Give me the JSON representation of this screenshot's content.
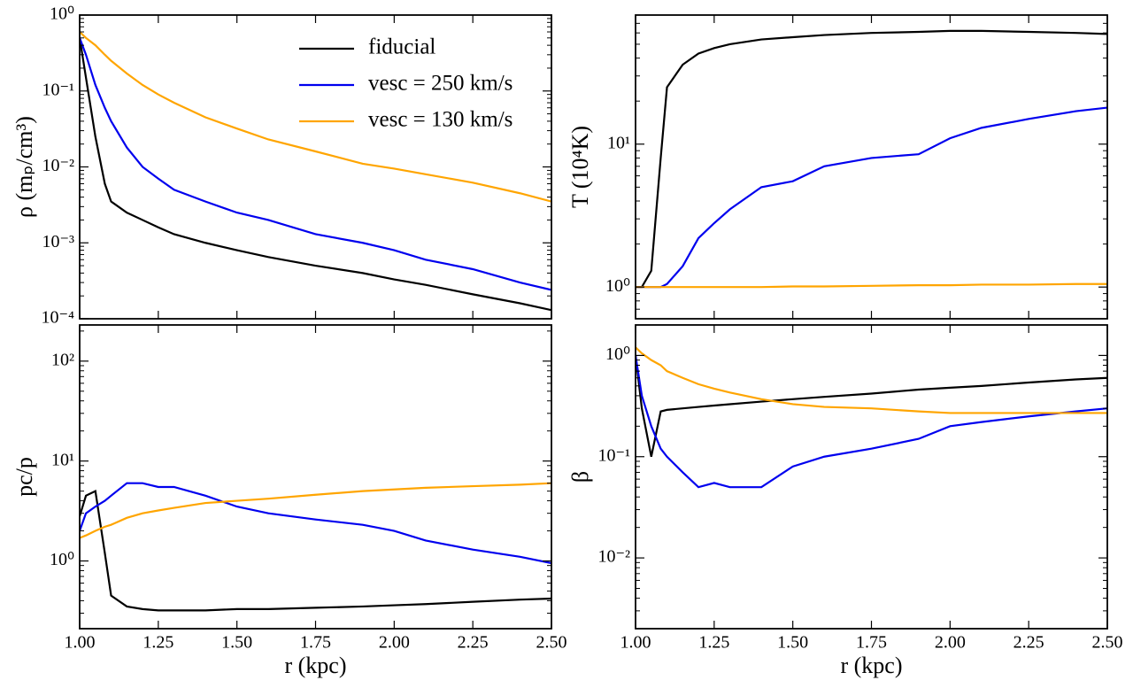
{
  "chart_data": [
    {
      "type": "line",
      "log_y": true,
      "legend": "upper right",
      "ylabel": "ρ (mₚ/cm³)",
      "x": [
        1.0,
        1.02,
        1.05,
        1.08,
        1.1,
        1.15,
        1.2,
        1.25,
        1.3,
        1.4,
        1.5,
        1.6,
        1.75,
        1.9,
        2.0,
        2.1,
        2.25,
        2.4,
        2.5
      ],
      "xlim": [
        1,
        2.5
      ],
      "xticks": [
        1,
        1.25,
        1.5,
        1.75,
        2,
        2.25,
        2.5
      ],
      "ylim": [
        0.0001,
        1
      ],
      "yticks": [
        {
          "value": 0.0001,
          "label": "10⁻⁴"
        },
        {
          "value": 0.001,
          "label": "10⁻³"
        },
        {
          "value": 0.01,
          "label": "10⁻²"
        },
        {
          "value": 0.1,
          "label": "10⁻¹"
        },
        {
          "value": 1,
          "label": "10⁰"
        }
      ],
      "series": [
        {
          "name": "fiducial",
          "color": "#000000",
          "values": [
            0.5,
            0.15,
            0.025,
            0.006,
            0.0035,
            0.0025,
            0.002,
            0.0016,
            0.0013,
            0.001,
            0.0008,
            0.00065,
            0.0005,
            0.0004,
            0.00033,
            0.00028,
            0.00021,
            0.00016,
            0.00013
          ]
        },
        {
          "name": "vesc = 250 km/s",
          "color": "#0000ee",
          "values": [
            0.5,
            0.3,
            0.12,
            0.06,
            0.04,
            0.018,
            0.01,
            0.007,
            0.005,
            0.0035,
            0.0025,
            0.002,
            0.0013,
            0.001,
            0.0008,
            0.0006,
            0.00045,
            0.0003,
            0.00024
          ]
        },
        {
          "name": "vesc = 130 km/s",
          "color": "#ffa500",
          "values": [
            0.6,
            0.5,
            0.4,
            0.3,
            0.25,
            0.17,
            0.12,
            0.09,
            0.07,
            0.045,
            0.032,
            0.023,
            0.016,
            0.011,
            0.0095,
            0.008,
            0.0062,
            0.0045,
            0.0035
          ]
        }
      ]
    },
    {
      "type": "line",
      "log_y": true,
      "ylabel": "T (10⁴K)",
      "x": [
        1.0,
        1.02,
        1.05,
        1.08,
        1.1,
        1.15,
        1.2,
        1.25,
        1.3,
        1.4,
        1.5,
        1.6,
        1.75,
        1.9,
        2.0,
        2.1,
        2.25,
        2.4,
        2.5
      ],
      "xlim": [
        1,
        2.5
      ],
      "xticks": [
        1,
        1.25,
        1.5,
        1.75,
        2,
        2.25,
        2.5
      ],
      "ylim": [
        0.6,
        80
      ],
      "yticks": [
        {
          "value": 1,
          "label": "10⁰"
        },
        {
          "value": 10,
          "label": "10¹"
        }
      ],
      "series": [
        {
          "color": "#000000",
          "values": [
            1.0,
            1.0,
            1.3,
            8,
            25,
            36,
            43,
            47,
            50,
            54,
            56,
            58,
            60,
            61,
            62,
            62,
            61,
            60,
            59
          ]
        },
        {
          "color": "#0000ee",
          "values": [
            1,
            1,
            1,
            1,
            1.05,
            1.4,
            2.2,
            2.8,
            3.5,
            5,
            5.5,
            7,
            8,
            8.5,
            11,
            13,
            15,
            17,
            18
          ]
        },
        {
          "color": "#ffa500",
          "values": [
            1,
            1,
            1,
            1,
            1,
            1,
            1,
            1,
            1,
            1,
            1.01,
            1.01,
            1.02,
            1.03,
            1.03,
            1.04,
            1.04,
            1.05,
            1.05
          ]
        }
      ]
    },
    {
      "type": "line",
      "log_y": true,
      "xlabel": "r (kpc)",
      "ylabel": "pc/p",
      "x": [
        1.0,
        1.02,
        1.05,
        1.08,
        1.1,
        1.15,
        1.2,
        1.25,
        1.3,
        1.4,
        1.5,
        1.6,
        1.75,
        1.9,
        2.0,
        2.1,
        2.25,
        2.4,
        2.5
      ],
      "xlim": [
        1,
        2.5
      ],
      "xticks": [
        {
          "value": 1,
          "label": "1.00"
        },
        {
          "value": 1.25,
          "label": "1.25"
        },
        {
          "value": 1.5,
          "label": "1.50"
        },
        {
          "value": 1.75,
          "label": "1.75"
        },
        {
          "value": 2,
          "label": "2.00"
        },
        {
          "value": 2.25,
          "label": "2.25"
        },
        {
          "value": 2.5,
          "label": "2.50"
        }
      ],
      "ylim": [
        0.21,
        230
      ],
      "yticks": [
        {
          "value": 1,
          "label": "10⁰"
        },
        {
          "value": 10,
          "label": "10¹"
        },
        {
          "value": 100,
          "label": "10²"
        }
      ],
      "series": [
        {
          "color": "#000000",
          "values": [
            2.8,
            4.5,
            5,
            1.2,
            0.45,
            0.35,
            0.33,
            0.32,
            0.32,
            0.32,
            0.33,
            0.33,
            0.34,
            0.35,
            0.36,
            0.37,
            0.39,
            0.41,
            0.42
          ]
        },
        {
          "color": "#0000ee",
          "values": [
            2,
            3,
            3.5,
            4,
            4.5,
            6,
            6,
            5.5,
            5.5,
            4.5,
            3.5,
            3,
            2.6,
            2.3,
            2.0,
            1.6,
            1.3,
            1.1,
            0.95
          ]
        },
        {
          "color": "#ffa500",
          "values": [
            1.7,
            1.8,
            2,
            2.2,
            2.3,
            2.7,
            3,
            3.2,
            3.4,
            3.8,
            4.0,
            4.2,
            4.6,
            5.0,
            5.2,
            5.4,
            5.6,
            5.8,
            6.0
          ]
        }
      ]
    },
    {
      "type": "line",
      "log_y": true,
      "xlabel": "r (kpc)",
      "ylabel": "β",
      "x": [
        1.0,
        1.02,
        1.05,
        1.08,
        1.1,
        1.15,
        1.2,
        1.25,
        1.3,
        1.4,
        1.5,
        1.6,
        1.75,
        1.9,
        2.0,
        2.1,
        2.25,
        2.4,
        2.5
      ],
      "xlim": [
        1,
        2.5
      ],
      "xticks": [
        {
          "value": 1,
          "label": "1.00"
        },
        {
          "value": 1.25,
          "label": "1.25"
        },
        {
          "value": 1.5,
          "label": "1.50"
        },
        {
          "value": 1.75,
          "label": "1.75"
        },
        {
          "value": 2,
          "label": "2.00"
        },
        {
          "value": 2.25,
          "label": "2.25"
        },
        {
          "value": 2.5,
          "label": "2.50"
        }
      ],
      "ylim": [
        0.002,
        2
      ],
      "yticks": [
        {
          "value": 0.01,
          "label": "10⁻²"
        },
        {
          "value": 0.1,
          "label": "10⁻¹"
        },
        {
          "value": 1,
          "label": "10⁰"
        }
      ],
      "series": [
        {
          "color": "#000000",
          "values": [
            1.0,
            0.3,
            0.1,
            0.28,
            0.29,
            0.3,
            0.31,
            0.32,
            0.33,
            0.35,
            0.37,
            0.39,
            0.42,
            0.46,
            0.48,
            0.5,
            0.54,
            0.58,
            0.6
          ]
        },
        {
          "color": "#0000ee",
          "values": [
            1.0,
            0.4,
            0.2,
            0.12,
            0.1,
            0.07,
            0.05,
            0.055,
            0.05,
            0.05,
            0.08,
            0.1,
            0.12,
            0.15,
            0.2,
            0.22,
            0.25,
            0.28,
            0.3
          ]
        },
        {
          "color": "#ffa500",
          "values": [
            1.2,
            1.05,
            0.9,
            0.8,
            0.7,
            0.6,
            0.52,
            0.47,
            0.43,
            0.37,
            0.33,
            0.31,
            0.3,
            0.28,
            0.27,
            0.27,
            0.27,
            0.27,
            0.27
          ]
        }
      ]
    }
  ]
}
